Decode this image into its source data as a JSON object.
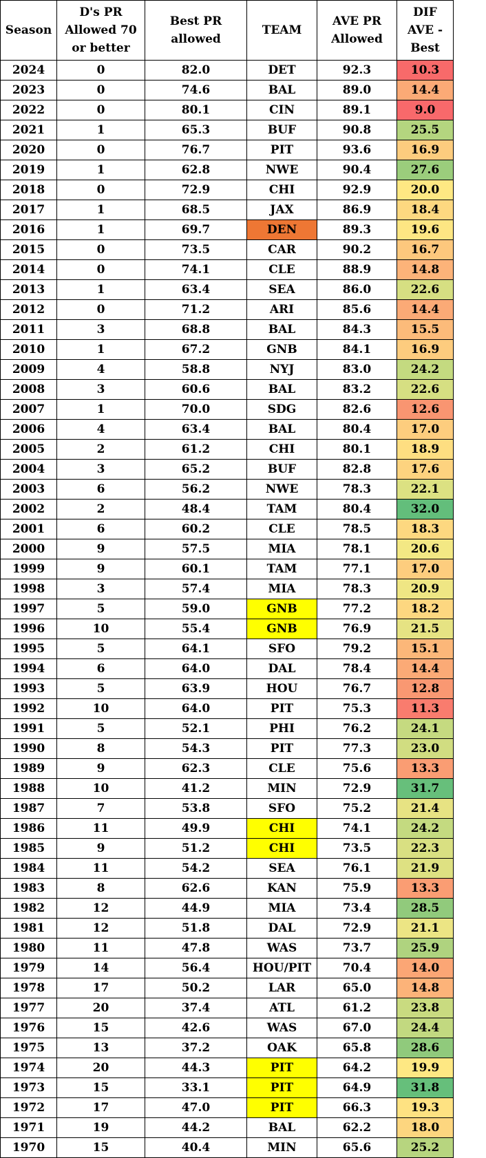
{
  "headers": {
    "season": "Season",
    "ds_pr": "D's PR Allowed 70 or better",
    "best_pr": "Best PR allowed",
    "team": "TEAM",
    "ave_pr": "AVE PR Allowed",
    "dif": "DIF AVE - Best"
  },
  "palette": {
    "team_highlight_yellow": "#ffff00",
    "team_highlight_orange": "#ee7734"
  },
  "rows": [
    {
      "season": "2024",
      "count": "0",
      "best": "82.0",
      "team": "DET",
      "ave": "92.3",
      "dif": "10.3",
      "team_hl": "",
      "dif_color": "#f86a6a"
    },
    {
      "season": "2023",
      "count": "0",
      "best": "74.6",
      "team": "BAL",
      "ave": "89.0",
      "dif": "14.4",
      "team_hl": "",
      "dif_color": "#fbaa76"
    },
    {
      "season": "2022",
      "count": "0",
      "best": "80.1",
      "team": "CIN",
      "ave": "89.1",
      "dif": "9.0",
      "team_hl": "",
      "dif_color": "#f8696b"
    },
    {
      "season": "2021",
      "count": "1",
      "best": "65.3",
      "team": "BUF",
      "ave": "90.8",
      "dif": "25.5",
      "team_hl": "",
      "dif_color": "#b4d57f"
    },
    {
      "season": "2020",
      "count": "0",
      "best": "76.7",
      "team": "PIT",
      "ave": "93.6",
      "dif": "16.9",
      "team_hl": "",
      "dif_color": "#fdcc7e"
    },
    {
      "season": "2019",
      "count": "1",
      "best": "62.8",
      "team": "NWE",
      "ave": "90.4",
      "dif": "27.6",
      "team_hl": "",
      "dif_color": "#9bcd7c"
    },
    {
      "season": "2018",
      "count": "0",
      "best": "72.9",
      "team": "CHI",
      "ave": "92.9",
      "dif": "20.0",
      "team_hl": "",
      "dif_color": "#fee883"
    },
    {
      "season": "2017",
      "count": "1",
      "best": "68.5",
      "team": "JAX",
      "ave": "86.9",
      "dif": "18.4",
      "team_hl": "",
      "dif_color": "#fdd880"
    },
    {
      "season": "2016",
      "count": "1",
      "best": "69.7",
      "team": "DEN",
      "ave": "89.3",
      "dif": "19.6",
      "team_hl": "#ee7734",
      "dif_color": "#fde683"
    },
    {
      "season": "2015",
      "count": "0",
      "best": "73.5",
      "team": "CAR",
      "ave": "90.2",
      "dif": "16.7",
      "team_hl": "",
      "dif_color": "#fdc87d"
    },
    {
      "season": "2014",
      "count": "0",
      "best": "74.1",
      "team": "CLE",
      "ave": "88.9",
      "dif": "14.8",
      "team_hl": "",
      "dif_color": "#fcb379"
    },
    {
      "season": "2013",
      "count": "1",
      "best": "63.4",
      "team": "SEA",
      "ave": "86.0",
      "dif": "22.6",
      "team_hl": "",
      "dif_color": "#d6df82"
    },
    {
      "season": "2012",
      "count": "0",
      "best": "71.2",
      "team": "ARI",
      "ave": "85.6",
      "dif": "14.4",
      "team_hl": "",
      "dif_color": "#fbaa76"
    },
    {
      "season": "2011",
      "count": "3",
      "best": "68.8",
      "team": "BAL",
      "ave": "84.3",
      "dif": "15.5",
      "team_hl": "",
      "dif_color": "#fcbb7a"
    },
    {
      "season": "2010",
      "count": "1",
      "best": "67.2",
      "team": "GNB",
      "ave": "84.1",
      "dif": "16.9",
      "team_hl": "",
      "dif_color": "#fdcc7e"
    },
    {
      "season": "2009",
      "count": "4",
      "best": "58.8",
      "team": "NYJ",
      "ave": "83.0",
      "dif": "24.2",
      "team_hl": "",
      "dif_color": "#c4da80"
    },
    {
      "season": "2008",
      "count": "3",
      "best": "60.6",
      "team": "BAL",
      "ave": "83.2",
      "dif": "22.6",
      "team_hl": "",
      "dif_color": "#d6df82"
    },
    {
      "season": "2007",
      "count": "1",
      "best": "70.0",
      "team": "SDG",
      "ave": "82.6",
      "dif": "12.6",
      "team_hl": "",
      "dif_color": "#f99571"
    },
    {
      "season": "2006",
      "count": "4",
      "best": "63.4",
      "team": "BAL",
      "ave": "80.4",
      "dif": "17.0",
      "team_hl": "",
      "dif_color": "#fdcd7e"
    },
    {
      "season": "2005",
      "count": "2",
      "best": "61.2",
      "team": "CHI",
      "ave": "80.1",
      "dif": "18.9",
      "team_hl": "",
      "dif_color": "#fede81"
    },
    {
      "season": "2004",
      "count": "3",
      "best": "65.2",
      "team": "BUF",
      "ave": "82.8",
      "dif": "17.6",
      "team_hl": "",
      "dif_color": "#fdd37f"
    },
    {
      "season": "2003",
      "count": "6",
      "best": "56.2",
      "team": "NWE",
      "ave": "78.3",
      "dif": "22.1",
      "team_hl": "",
      "dif_color": "#dce182"
    },
    {
      "season": "2002",
      "count": "2",
      "best": "48.4",
      "team": "TAM",
      "ave": "80.4",
      "dif": "32.0",
      "team_hl": "",
      "dif_color": "#63be7b"
    },
    {
      "season": "2001",
      "count": "6",
      "best": "60.2",
      "team": "CLE",
      "ave": "78.5",
      "dif": "18.3",
      "team_hl": "",
      "dif_color": "#fdd880"
    },
    {
      "season": "2000",
      "count": "9",
      "best": "57.5",
      "team": "MIA",
      "ave": "78.1",
      "dif": "20.6",
      "team_hl": "",
      "dif_color": "#f3e884"
    },
    {
      "season": "1999",
      "count": "9",
      "best": "60.1",
      "team": "TAM",
      "ave": "77.1",
      "dif": "17.0",
      "team_hl": "",
      "dif_color": "#fdcd7e"
    },
    {
      "season": "1998",
      "count": "3",
      "best": "57.4",
      "team": "MIA",
      "ave": "78.3",
      "dif": "20.9",
      "team_hl": "",
      "dif_color": "#efe684"
    },
    {
      "season": "1997",
      "count": "5",
      "best": "59.0",
      "team": "GNB",
      "ave": "77.2",
      "dif": "18.2",
      "team_hl": "#ffff00",
      "dif_color": "#fdd780"
    },
    {
      "season": "1996",
      "count": "10",
      "best": "55.4",
      "team": "GNB",
      "ave": "76.9",
      "dif": "21.5",
      "team_hl": "#ffff00",
      "dif_color": "#e6e383"
    },
    {
      "season": "1995",
      "count": "5",
      "best": "64.1",
      "team": "SFO",
      "ave": "79.2",
      "dif": "15.1",
      "team_hl": "",
      "dif_color": "#fcb779"
    },
    {
      "season": "1994",
      "count": "6",
      "best": "64.0",
      "team": "DAL",
      "ave": "78.4",
      "dif": "14.4",
      "team_hl": "",
      "dif_color": "#fbaa76"
    },
    {
      "season": "1993",
      "count": "5",
      "best": "63.9",
      "team": "HOU",
      "ave": "76.7",
      "dif": "12.8",
      "team_hl": "",
      "dif_color": "#f99872"
    },
    {
      "season": "1992",
      "count": "10",
      "best": "64.0",
      "team": "PIT",
      "ave": "75.3",
      "dif": "11.3",
      "team_hl": "",
      "dif_color": "#f97c6e"
    },
    {
      "season": "1991",
      "count": "5",
      "best": "52.1",
      "team": "PHI",
      "ave": "76.2",
      "dif": "24.1",
      "team_hl": "",
      "dif_color": "#c5da80"
    },
    {
      "season": "1990",
      "count": "8",
      "best": "54.3",
      "team": "PIT",
      "ave": "77.3",
      "dif": "23.0",
      "team_hl": "",
      "dif_color": "#d1dd81"
    },
    {
      "season": "1989",
      "count": "9",
      "best": "62.3",
      "team": "CLE",
      "ave": "75.6",
      "dif": "13.3",
      "team_hl": "",
      "dif_color": "#fa9d73"
    },
    {
      "season": "1988",
      "count": "10",
      "best": "41.2",
      "team": "MIN",
      "ave": "72.9",
      "dif": "31.7",
      "team_hl": "",
      "dif_color": "#67bf7b"
    },
    {
      "season": "1987",
      "count": "7",
      "best": "53.8",
      "team": "SFO",
      "ave": "75.2",
      "dif": "21.4",
      "team_hl": "",
      "dif_color": "#e7e383"
    },
    {
      "season": "1986",
      "count": "11",
      "best": "49.9",
      "team": "CHI",
      "ave": "74.1",
      "dif": "24.2",
      "team_hl": "#ffff00",
      "dif_color": "#c4da80"
    },
    {
      "season": "1985",
      "count": "9",
      "best": "51.2",
      "team": "CHI",
      "ave": "73.5",
      "dif": "22.3",
      "team_hl": "#ffff00",
      "dif_color": "#d9e082"
    },
    {
      "season": "1984",
      "count": "11",
      "best": "54.2",
      "team": "SEA",
      "ave": "76.1",
      "dif": "21.9",
      "team_hl": "",
      "dif_color": "#dee182"
    },
    {
      "season": "1983",
      "count": "8",
      "best": "62.6",
      "team": "KAN",
      "ave": "75.9",
      "dif": "13.3",
      "team_hl": "",
      "dif_color": "#fa9d73"
    },
    {
      "season": "1982",
      "count": "12",
      "best": "44.9",
      "team": "MIA",
      "ave": "73.4",
      "dif": "28.5",
      "team_hl": "",
      "dif_color": "#91ca7c"
    },
    {
      "season": "1981",
      "count": "12",
      "best": "51.8",
      "team": "DAL",
      "ave": "72.9",
      "dif": "21.1",
      "team_hl": "",
      "dif_color": "#ece584"
    },
    {
      "season": "1980",
      "count": "11",
      "best": "47.8",
      "team": "WAS",
      "ave": "73.7",
      "dif": "25.9",
      "team_hl": "",
      "dif_color": "#afd37f"
    },
    {
      "season": "1979",
      "count": "14",
      "best": "56.4",
      "team": "HOU/PIT",
      "ave": "70.4",
      "dif": "14.0",
      "team_hl": "",
      "dif_color": "#fba675"
    },
    {
      "season": "1978",
      "count": "17",
      "best": "50.2",
      "team": "LAR",
      "ave": "65.0",
      "dif": "14.8",
      "team_hl": "",
      "dif_color": "#fcb379"
    },
    {
      "season": "1977",
      "count": "20",
      "best": "37.4",
      "team": "ATL",
      "ave": "61.2",
      "dif": "23.8",
      "team_hl": "",
      "dif_color": "#c9db80"
    },
    {
      "season": "1976",
      "count": "15",
      "best": "42.6",
      "team": "WAS",
      "ave": "67.0",
      "dif": "24.4",
      "team_hl": "",
      "dif_color": "#c2d980"
    },
    {
      "season": "1975",
      "count": "13",
      "best": "37.2",
      "team": "OAK",
      "ave": "65.8",
      "dif": "28.6",
      "team_hl": "",
      "dif_color": "#90ca7c"
    },
    {
      "season": "1974",
      "count": "20",
      "best": "44.3",
      "team": "PIT",
      "ave": "64.2",
      "dif": "19.9",
      "team_hl": "#ffff00",
      "dif_color": "#fee883"
    },
    {
      "season": "1973",
      "count": "15",
      "best": "33.1",
      "team": "PIT",
      "ave": "64.9",
      "dif": "31.8",
      "team_hl": "#ffff00",
      "dif_color": "#66bf7b"
    },
    {
      "season": "1972",
      "count": "17",
      "best": "47.0",
      "team": "PIT",
      "ave": "66.3",
      "dif": "19.3",
      "team_hl": "#ffff00",
      "dif_color": "#fee282"
    },
    {
      "season": "1971",
      "count": "19",
      "best": "44.2",
      "team": "BAL",
      "ave": "62.2",
      "dif": "18.0",
      "team_hl": "",
      "dif_color": "#fdd67f"
    },
    {
      "season": "1970",
      "count": "15",
      "best": "40.4",
      "team": "MIN",
      "ave": "65.6",
      "dif": "25.2",
      "team_hl": "",
      "dif_color": "#b7d57f"
    }
  ]
}
